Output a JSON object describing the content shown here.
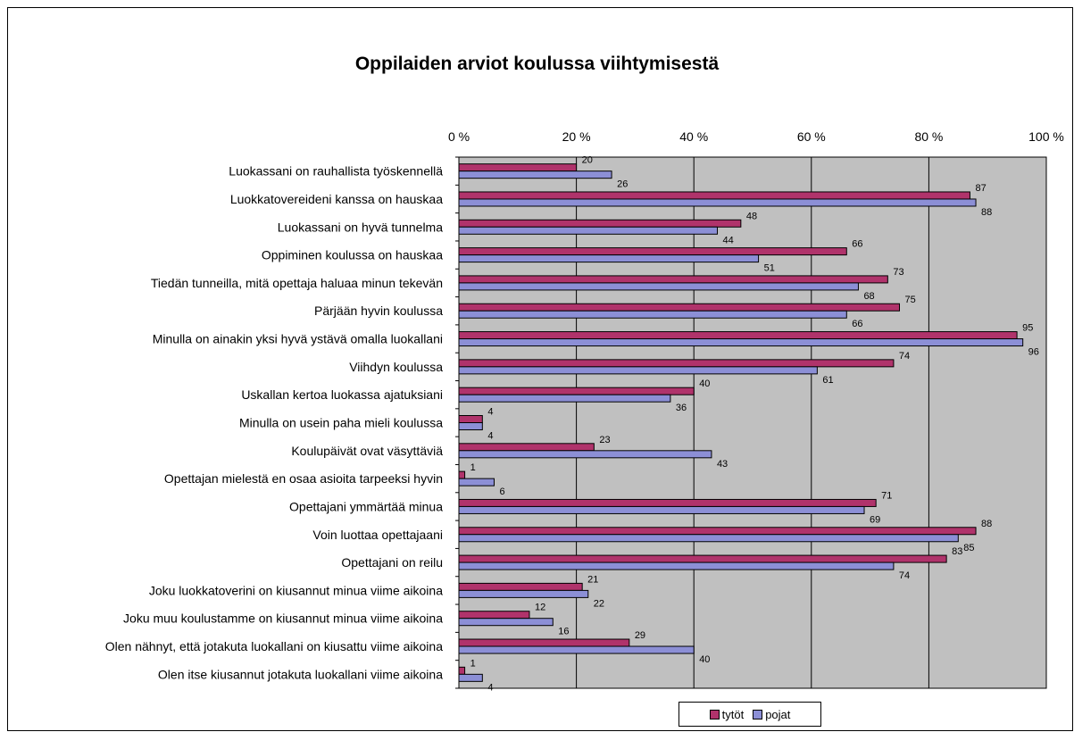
{
  "chart_data": {
    "type": "bar",
    "orientation": "horizontal",
    "title": "Oppilaiden arviot koulussa viihtymisestä",
    "xlim": [
      0,
      100
    ],
    "x_ticks": [
      "0 %",
      "20 %",
      "40 %",
      "60 %",
      "80 %",
      "100 %"
    ],
    "grid": true,
    "legend": "bottom",
    "categories": [
      "Luokassani on rauhallista työskennellä",
      "Luokkatovereideni kanssa on hauskaa",
      "Luokassani on hyvä tunnelma",
      "Oppiminen koulussa on hauskaa",
      "Tiedän tunneilla, mitä opettaja haluaa minun tekevän",
      "Pärjään hyvin koulussa",
      "Minulla on ainakin yksi hyvä ystävä omalla luokallani",
      "Viihdyn koulussa",
      "Uskallan kertoa luokassa ajatuksiani",
      "Minulla on usein paha mieli koulussa",
      "Koulupäivät ovat väsyttäviä",
      "Opettajan mielestä en osaa asioita tarpeeksi hyvin",
      "Opettajani ymmärtää minua",
      "Voin luottaa opettajaani",
      "Opettajani on reilu",
      "Joku luokkatoverini on kiusannut minua viime aikoina",
      "Joku muu koulustamme on kiusannut minua viime aikoina",
      "Olen nähnyt, että jotakuta luokallani on kiusattu viime aikoina",
      "Olen itse kiusannut jotakuta luokallani viime aikoina"
    ],
    "series": [
      {
        "name": "tytöt",
        "color": "#b0336b",
        "values": [
          20,
          87,
          48,
          66,
          73,
          75,
          95,
          74,
          40,
          4,
          23,
          1,
          71,
          88,
          83,
          21,
          12,
          29,
          1
        ]
      },
      {
        "name": "pojat",
        "color": "#8c8fd6",
        "values": [
          26,
          88,
          44,
          51,
          68,
          66,
          96,
          61,
          36,
          4,
          43,
          6,
          69,
          85,
          74,
          22,
          16,
          40,
          4
        ]
      }
    ],
    "plot_background": "#c0c0c0"
  }
}
